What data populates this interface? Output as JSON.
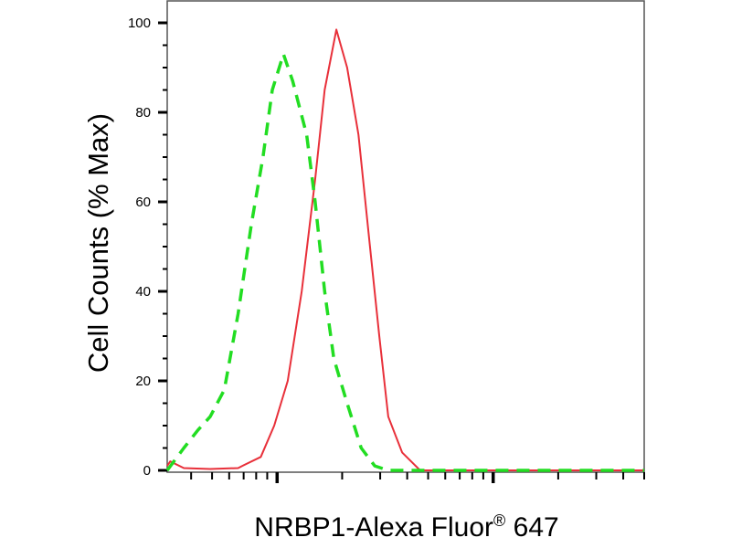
{
  "chart_data": {
    "type": "line",
    "title": "",
    "xlabel_main": "NRBP1-Alexa Fluor",
    "xlabel_mark": "®",
    "xlabel_tail": " 647",
    "ylabel": "Cell Counts (% Max)",
    "x_scale": "log",
    "xlim": [
      31,
      5000
    ],
    "ylim": [
      0,
      100
    ],
    "yticks": [
      0,
      20,
      40,
      60,
      80,
      100
    ],
    "x_tick_labels_shown": false,
    "grid": false,
    "series": [
      {
        "color": "#e8303a",
        "style": "solid",
        "x": [
          31,
          32,
          37,
          49,
          66,
          69,
          84,
          97,
          112,
          130,
          150,
          166,
          188,
          211,
          238,
          269,
          297,
          327,
          379,
          459,
          5000
        ],
        "y": [
          1,
          2,
          0.5,
          0.3,
          0.5,
          1,
          3,
          10,
          20,
          40,
          65,
          85,
          98.5,
          90,
          75,
          50,
          30,
          12,
          4,
          0,
          0
        ]
      },
      {
        "color": "#22dd22",
        "style": "dashed",
        "x": [
          31,
          37,
          43,
          49,
          57,
          66,
          76,
          86,
          95,
          107,
          118,
          137,
          150,
          166,
          183,
          211,
          245,
          283,
          327,
          5000
        ],
        "y": [
          0,
          5,
          9,
          12,
          18,
          35,
          55,
          70,
          85,
          93,
          87,
          75,
          60,
          40,
          25,
          15,
          5,
          1,
          0,
          0
        ]
      }
    ]
  }
}
